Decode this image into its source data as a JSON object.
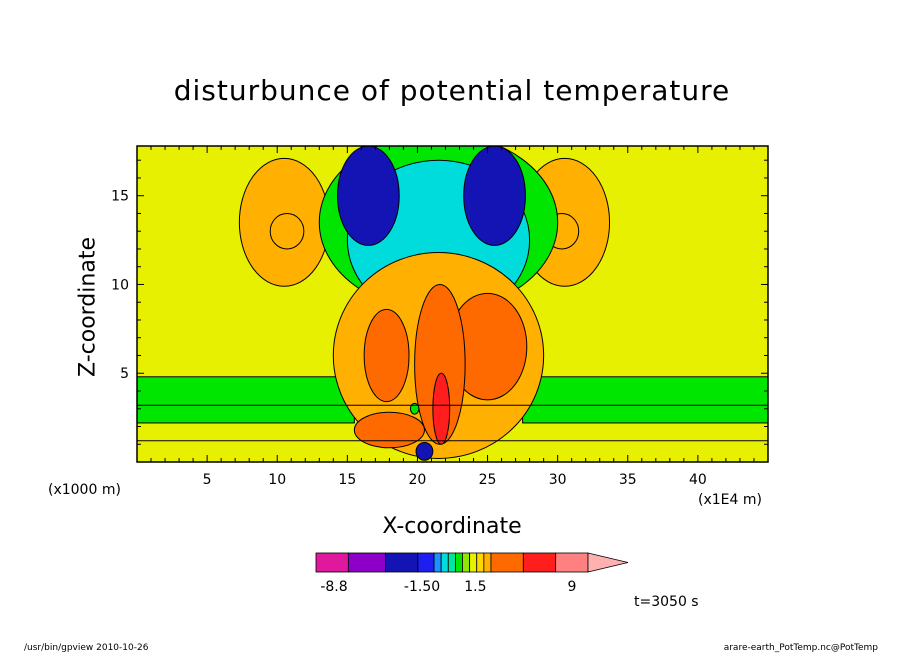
{
  "chart_data": {
    "type": "heatmap",
    "title": "disturbunce of potential temperature",
    "xlabel": "X-coordinate",
    "ylabel": "Z-coordinate",
    "x_scale_label": "(x1000 m)",
    "x_unit_label": "(x1E4 m)",
    "time_label": "t=3050 s",
    "xlim": [
      0,
      45
    ],
    "ylim": [
      0,
      17.8
    ],
    "x_ticks": [
      5,
      10,
      15,
      20,
      25,
      30,
      35,
      40
    ],
    "y_ticks": [
      5,
      10,
      15
    ],
    "grid": false,
    "colorbar": {
      "placement": "bottom-center",
      "labels": [
        "-8.8",
        "-1.50",
        "1.5",
        "9"
      ],
      "colors": [
        "#e0189e",
        "#8c00c8",
        "#1414b4",
        "#1e1ef0",
        "#1e90ff",
        "#00dcdc",
        "#00e6a0",
        "#00e600",
        "#90e600",
        "#e6f000",
        "#ffd700",
        "#ffb000",
        "#ff6a00",
        "#ff1e1e",
        "#ff8080",
        "#ffb0b0"
      ]
    },
    "field_colors": {
      "background": "#e6f000",
      "positive_1": "#ffb000",
      "positive_2": "#ff6a00",
      "positive_3": "#ff1e1e",
      "negative_1": "#00e600",
      "negative_2": "#00dcdc",
      "negative_3": "#1414b4"
    },
    "structures": [
      {
        "kind": "warm",
        "level": 1,
        "cx": 10.5,
        "cy": 13.5,
        "rx": 3.2,
        "ry": 3.6
      },
      {
        "kind": "warm",
        "level": 1,
        "cx": 10.7,
        "cy": 13.0,
        "rx": 1.2,
        "ry": 1.0
      },
      {
        "kind": "warm",
        "level": 1,
        "cx": 30.5,
        "cy": 13.5,
        "rx": 3.2,
        "ry": 3.6
      },
      {
        "kind": "warm",
        "level": 1,
        "cx": 30.3,
        "cy": 13.0,
        "rx": 1.2,
        "ry": 1.0
      },
      {
        "kind": "cool",
        "level": 1,
        "cx": 21.5,
        "cy": 13.5,
        "rx": 8.5,
        "ry": 5.0
      },
      {
        "kind": "cool",
        "level": 2,
        "cx": 21.5,
        "cy": 12.5,
        "rx": 6.5,
        "ry": 4.5
      },
      {
        "kind": "cool",
        "level": 3,
        "cx": 16.5,
        "cy": 15.0,
        "rx": 2.2,
        "ry": 2.8
      },
      {
        "kind": "cool",
        "level": 3,
        "cx": 25.5,
        "cy": 15.0,
        "rx": 2.2,
        "ry": 2.8
      },
      {
        "kind": "warm",
        "level": 1,
        "cx": 21.5,
        "cy": 6.0,
        "rx": 7.5,
        "ry": 5.8
      },
      {
        "kind": "warm",
        "level": 2,
        "cx": 17.8,
        "cy": 6.0,
        "rx": 1.6,
        "ry": 2.6
      },
      {
        "kind": "warm",
        "level": 2,
        "cx": 25.0,
        "cy": 6.5,
        "rx": 2.8,
        "ry": 3.0
      },
      {
        "kind": "warm",
        "level": 2,
        "cx": 21.6,
        "cy": 5.5,
        "rx": 1.8,
        "ry": 4.5
      },
      {
        "kind": "warm",
        "level": 3,
        "cx": 21.7,
        "cy": 3.0,
        "rx": 0.6,
        "ry": 2.0
      },
      {
        "kind": "warm",
        "level": 2,
        "cx": 18.0,
        "cy": 1.8,
        "rx": 2.5,
        "ry": 1.0
      },
      {
        "kind": "cool",
        "level": 3,
        "cx": 20.5,
        "cy": 0.6,
        "rx": 0.6,
        "ry": 0.5
      },
      {
        "kind": "cool",
        "level": 1,
        "cx": 19.8,
        "cy": 3.0,
        "rx": 0.3,
        "ry": 0.3
      }
    ],
    "bands": [
      {
        "kind": "cool",
        "level": 1,
        "x0": 0,
        "x1": 15.5,
        "y0": 2.2,
        "y1": 4.8
      },
      {
        "kind": "cool",
        "level": 1,
        "x0": 27.5,
        "x1": 45,
        "y0": 2.2,
        "y1": 4.8
      }
    ],
    "contour_lines": [
      1.2,
      3.2
    ]
  },
  "footer": {
    "left": "/usr/bin/gpview   2010-10-26",
    "right": "arare-earth_PotTemp.nc@PotTemp"
  }
}
